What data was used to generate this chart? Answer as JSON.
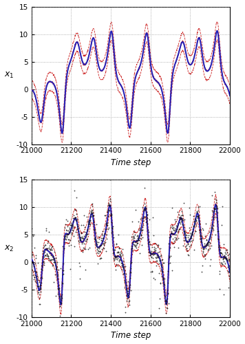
{
  "t_start": 21000,
  "t_end": 22000,
  "n_points": 1001,
  "seed": 42,
  "ylim": [
    -10,
    15
  ],
  "yticks": [
    -10,
    -5,
    0,
    5,
    10,
    15
  ],
  "xticks": [
    21000,
    21200,
    21400,
    21600,
    21800,
    22000
  ],
  "xlabel": "Time step",
  "ylabel1": "$x_1$",
  "ylabel2": "$x_2$",
  "true_color": "#2222bb",
  "estimate_color": "#cc2222",
  "sigma_color": "#cc2222",
  "obs_color": "#111111",
  "true_lw": 1.4,
  "est_lw": 1.0,
  "sigma_lw": 0.6,
  "obs_ms": 2.0,
  "sigma_alpha": 1.0,
  "background": "#ffffff",
  "grid_color": "#999999",
  "grid_ls": "dotted"
}
